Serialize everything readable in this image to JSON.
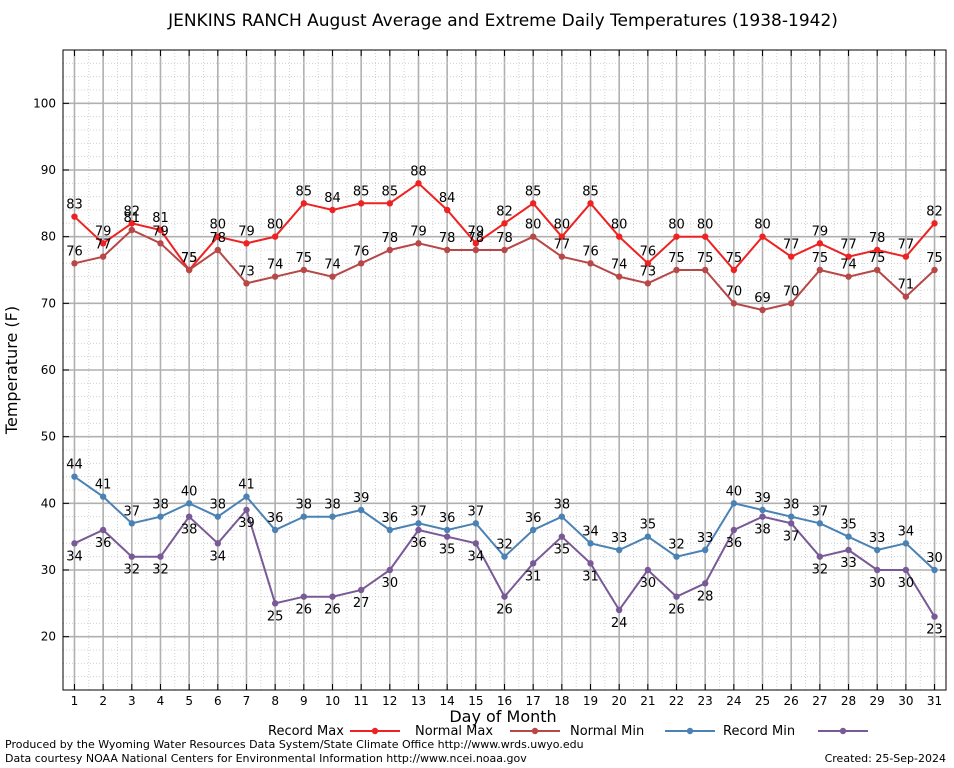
{
  "chart_data": {
    "type": "line",
    "title": "JENKINS RANCH August Average and Extreme Daily Temperatures (1938-1942)",
    "xlabel": "Day of Month",
    "ylabel": "Temperature (F)",
    "xlim": [
      0.6,
      31.4
    ],
    "ylim": [
      12,
      108
    ],
    "yticks": [
      20,
      30,
      40,
      50,
      60,
      70,
      80,
      90,
      100
    ],
    "x": [
      1,
      2,
      3,
      4,
      5,
      6,
      7,
      8,
      9,
      10,
      11,
      12,
      13,
      14,
      15,
      16,
      17,
      18,
      19,
      20,
      21,
      22,
      23,
      24,
      25,
      26,
      27,
      28,
      29,
      30,
      31
    ],
    "grid": true,
    "legend_position": "bottom",
    "series": [
      {
        "name": "Record Max",
        "color": "#ee2222",
        "label_pos": "above",
        "values": [
          83,
          79,
          82,
          81,
          75,
          80,
          79,
          80,
          85,
          84,
          85,
          85,
          88,
          84,
          79,
          82,
          85,
          80,
          85,
          80,
          76,
          80,
          80,
          75,
          80,
          77,
          79,
          77,
          78,
          77,
          82
        ]
      },
      {
        "name": "Normal Max",
        "color": "#b84848",
        "label_pos": "above",
        "values": [
          76,
          77,
          81,
          79,
          75,
          78,
          73,
          74,
          75,
          74,
          76,
          78,
          79,
          78,
          78,
          78,
          80,
          77,
          76,
          74,
          73,
          75,
          75,
          70,
          69,
          70,
          75,
          74,
          75,
          71,
          75
        ]
      },
      {
        "name": "Normal Min",
        "color": "#4a82b4",
        "label_pos": "mixed",
        "values": [
          44,
          41,
          37,
          38,
          40,
          38,
          41,
          36,
          38,
          38,
          39,
          36,
          37,
          36,
          37,
          32,
          36,
          38,
          34,
          33,
          35,
          32,
          33,
          40,
          39,
          38,
          37,
          35,
          33,
          34,
          30
        ]
      },
      {
        "name": "Record Min",
        "color": "#7a5a96",
        "label_pos": "mixed",
        "values": [
          34,
          36,
          32,
          32,
          38,
          34,
          39,
          25,
          26,
          26,
          27,
          30,
          36,
          35,
          34,
          26,
          31,
          35,
          31,
          24,
          30,
          26,
          28,
          36,
          38,
          37,
          32,
          33,
          30,
          30,
          23
        ]
      }
    ]
  },
  "footer": {
    "produced_by": "Produced by the Wyoming Water Resources Data System/State Climate Office http://www.wrds.uwyo.edu",
    "courtesy": "Data courtesy NOAA National Centers for Environmental Information http://www.ncei.noaa.gov",
    "created": "Created:  25-Sep-2024"
  }
}
